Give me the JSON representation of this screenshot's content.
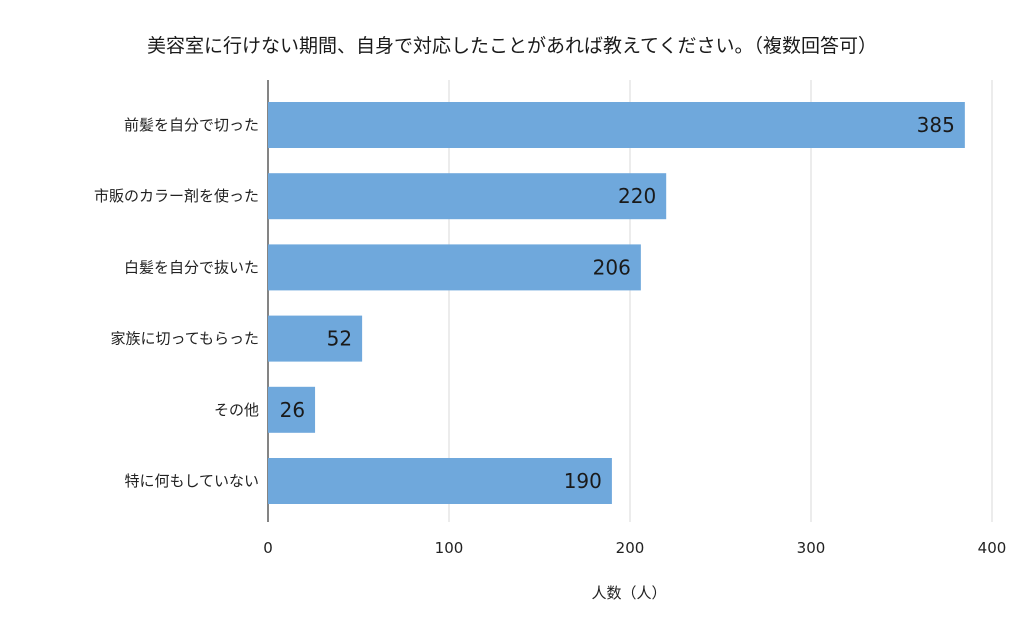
{
  "chart_data": {
    "type": "bar",
    "orientation": "horizontal",
    "title": "美容室に行けない期間、自身で対応したことがあれば教えてください。（複数回答可）",
    "xlabel": "人数（人）",
    "ylabel": "",
    "categories": [
      "前髪を自分で切った",
      "市販のカラー剤を使った",
      "白髪を自分で抜いた",
      "家族に切ってもらった",
      "その他",
      "特に何もしていない"
    ],
    "values": [
      385,
      220,
      206,
      52,
      26,
      190
    ],
    "xlim": [
      0,
      400
    ],
    "xticks": [
      0,
      100,
      200,
      300,
      400
    ],
    "grid": true,
    "legend": "none",
    "data_labels": true,
    "colors": {
      "bar": "#6fa8dc",
      "grid": "#d9d9d9",
      "axis": "#333333"
    }
  }
}
